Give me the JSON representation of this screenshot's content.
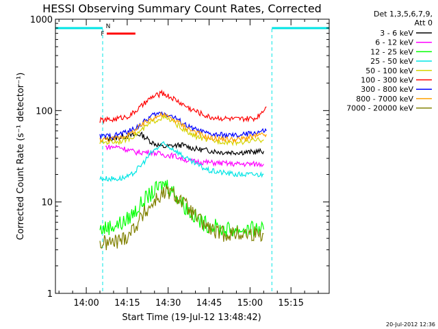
{
  "chart_data": {
    "type": "line",
    "title": "HESSI Observing Summary Count Rates, Corrected",
    "xlabel": "Start Time (19-Jul-12 13:48:42)",
    "ylabel": "Corrected Count Rate (s⁻¹ detector⁻¹)",
    "x_unit": "minutes",
    "xlim": [
      "13:48:42",
      "15:29:00"
    ],
    "ylim": [
      1,
      1000
    ],
    "yscale": "log",
    "x_ticks": [
      "14:00",
      "14:15",
      "14:30",
      "14:45",
      "15:00",
      "15:15"
    ],
    "y_ticks": [
      "1",
      "10",
      "100",
      "1000"
    ],
    "legend_title": [
      "Det 1,3,5,6,7,9,",
      "Att 0"
    ],
    "legend_position": "right",
    "footer": "20-Jul-2012 12:36",
    "flags": [
      {
        "label": "N",
        "color": "#00e5e5",
        "segments": [
          [
            "13:48:42",
            "14:06:00"
          ],
          [
            "15:08:00",
            "15:29:00"
          ]
        ]
      },
      {
        "label": "F",
        "color": "#ff0000",
        "segments": [
          [
            "14:07:30",
            "14:18:00"
          ]
        ]
      }
    ],
    "data_gaps": [
      [
        "14:06:00",
        "15:08:00"
      ]
    ],
    "series": [
      {
        "name": "3 - 6 keV",
        "color": "#000000",
        "x": [
          "14:07",
          "14:14",
          "14:20",
          "14:24",
          "14:28",
          "14:35",
          "14:40",
          "14:50",
          "15:00",
          "15:05"
        ],
        "values": [
          48,
          52,
          55,
          45,
          40,
          42,
          38,
          35,
          35,
          36
        ]
      },
      {
        "name": "6 - 12 keV",
        "color": "#ff00ff",
        "x": [
          "14:07",
          "14:12",
          "14:18",
          "14:24",
          "14:28",
          "14:32",
          "14:38",
          "14:45",
          "14:55",
          "15:05"
        ],
        "values": [
          40,
          40,
          35,
          35,
          33,
          32,
          28,
          27,
          26,
          26
        ]
      },
      {
        "name": "12 - 25 keV",
        "color": "#00ff00",
        "x": [
          "14:05",
          "14:10",
          "14:14",
          "14:18",
          "14:22",
          "14:26",
          "14:29",
          "14:32",
          "14:36",
          "14:42",
          "14:50",
          "15:00",
          "15:05"
        ],
        "values": [
          5,
          5.5,
          6,
          8,
          11,
          14,
          16,
          13,
          9,
          6,
          5,
          5,
          5
        ]
      },
      {
        "name": "25 - 50 keV",
        "color": "#00e5e5",
        "x": [
          "14:05",
          "14:12",
          "14:16",
          "14:20",
          "14:24",
          "14:28",
          "14:32",
          "14:38",
          "14:45",
          "14:55",
          "15:05"
        ],
        "values": [
          18,
          18,
          19,
          25,
          35,
          43,
          38,
          28,
          22,
          20,
          20
        ]
      },
      {
        "name": "50 - 100 keV",
        "color": "#d4d400",
        "x": [
          "14:05",
          "14:12",
          "14:16",
          "14:20",
          "14:24",
          "14:28",
          "14:32",
          "14:38",
          "14:45",
          "14:55",
          "15:05"
        ],
        "values": [
          45,
          46,
          50,
          60,
          75,
          85,
          75,
          55,
          47,
          45,
          48
        ]
      },
      {
        "name": "100 - 300 keV",
        "color": "#ff0000",
        "x": [
          "14:05",
          "14:10",
          "14:16",
          "14:20",
          "14:24",
          "14:28",
          "14:32",
          "14:38",
          "14:45",
          "14:55",
          "15:02",
          "15:06"
        ],
        "values": [
          78,
          80,
          88,
          110,
          140,
          155,
          135,
          105,
          85,
          80,
          82,
          110
        ]
      },
      {
        "name": "300 - 800 keV",
        "color": "#0000ff",
        "x": [
          "14:05",
          "14:10",
          "14:16",
          "14:20",
          "14:24",
          "14:28",
          "14:32",
          "14:38",
          "14:45",
          "14:55",
          "15:06"
        ],
        "values": [
          52,
          53,
          60,
          70,
          88,
          95,
          85,
          65,
          55,
          53,
          60
        ]
      },
      {
        "name": "800 - 7000 keV",
        "color": "#ffa000",
        "x": [
          "14:05",
          "14:10",
          "14:16",
          "14:20",
          "14:24",
          "14:28",
          "14:32",
          "14:38",
          "14:45",
          "14:55",
          "15:06"
        ],
        "values": [
          48,
          49,
          55,
          68,
          83,
          90,
          80,
          62,
          50,
          48,
          55
        ]
      },
      {
        "name": "7000 - 20000 keV",
        "color": "#808000",
        "x": [
          "14:05",
          "14:10",
          "14:14",
          "14:18",
          "14:22",
          "14:26",
          "14:30",
          "14:34",
          "14:38",
          "14:42",
          "14:48",
          "14:55",
          "15:05"
        ],
        "values": [
          3.5,
          3.6,
          4,
          5.5,
          8,
          11,
          13,
          11,
          8,
          6,
          4.5,
          4.5,
          4.5
        ]
      }
    ]
  }
}
